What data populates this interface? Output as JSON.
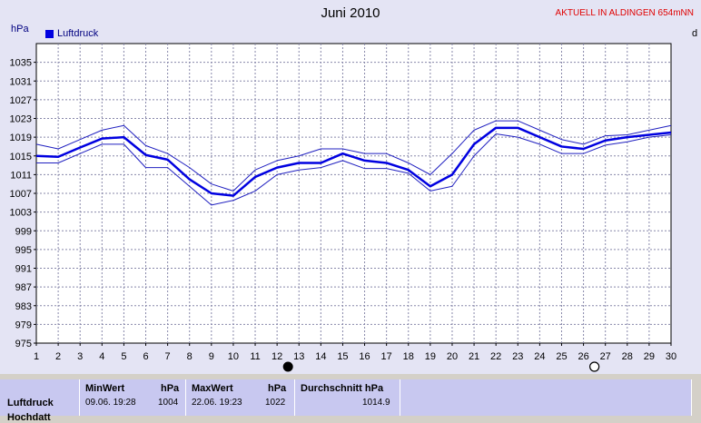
{
  "header": {
    "title": "Juni 2010",
    "unit_left": "hPa",
    "unit_right": "d",
    "station_badge": "AKTUELL IN ALDINGEN 654mNN"
  },
  "legend": {
    "label": "Luftdruck"
  },
  "colors": {
    "mean_line": "#0000e0",
    "band_line": "#2020c0",
    "grid": "#8888aa",
    "badge": "#e00000"
  },
  "moon_icons": [
    {
      "name": "new-moon-icon",
      "day": 12.5
    },
    {
      "name": "full-moon-icon",
      "day": 26.5
    }
  ],
  "chart_data": {
    "type": "line",
    "title": "Juni 2010",
    "ylabel": "hPa",
    "xlabel": "",
    "x": [
      1,
      2,
      3,
      4,
      5,
      6,
      7,
      8,
      9,
      10,
      11,
      12,
      13,
      14,
      15,
      16,
      17,
      18,
      19,
      20,
      21,
      22,
      23,
      24,
      25,
      26,
      27,
      28,
      29,
      30
    ],
    "xlim": [
      1,
      30
    ],
    "ylim": [
      975,
      1039
    ],
    "yticks": [
      975,
      979,
      983,
      987,
      991,
      995,
      999,
      1003,
      1007,
      1011,
      1015,
      1019,
      1023,
      1027,
      1031,
      1035
    ],
    "grid": true,
    "legend_position": "top-left",
    "series": [
      {
        "name": "Luftdruck",
        "values": [
          1015,
          1014.8,
          1016.8,
          1018.7,
          1019,
          1015.2,
          1014.2,
          1010,
          1007,
          1006.5,
          1010.5,
          1012.5,
          1013.5,
          1013.5,
          1015.5,
          1014,
          1013.5,
          1012,
          1008.5,
          1011,
          1017.5,
          1021,
          1021,
          1019,
          1017,
          1016.5,
          1018.3,
          1019,
          1019.5,
          1020
        ]
      },
      {
        "values": [
          1017.5,
          1016.5,
          1018.5,
          1020.5,
          1021.5,
          1017.2,
          1015.5,
          1012.5,
          1009,
          1007.5,
          1012,
          1014,
          1015,
          1016.5,
          1016.5,
          1015.5,
          1015.5,
          1013.5,
          1011,
          1015.5,
          1020.5,
          1022.5,
          1022.5,
          1020.5,
          1018.5,
          1017.5,
          1019.3,
          1019.5,
          1020.5,
          1021.5
        ]
      },
      {
        "values": [
          1013.5,
          1013.5,
          1015.5,
          1017.5,
          1017.5,
          1012.5,
          1012.5,
          1008.5,
          1004.5,
          1005.5,
          1007.5,
          1011,
          1012,
          1012.5,
          1014,
          1012.3,
          1012.3,
          1011.3,
          1007.5,
          1008.5,
          1015,
          1019.7,
          1019,
          1017.5,
          1015.5,
          1015.5,
          1017.3,
          1018,
          1019,
          1019.5
        ]
      }
    ]
  },
  "stats": {
    "row_label": "Luftdruck",
    "row_label_2": "Hochdatt",
    "min": {
      "header": "MinWert",
      "unit": "hPa",
      "time": "09.06.  19:28",
      "value": "1004"
    },
    "max": {
      "header": "MaxWert",
      "unit": "hPa",
      "time": "22.06.  19:23",
      "value": "1022"
    },
    "avg": {
      "header": "Durchschnitt  hPa",
      "value": "1014.9"
    }
  }
}
